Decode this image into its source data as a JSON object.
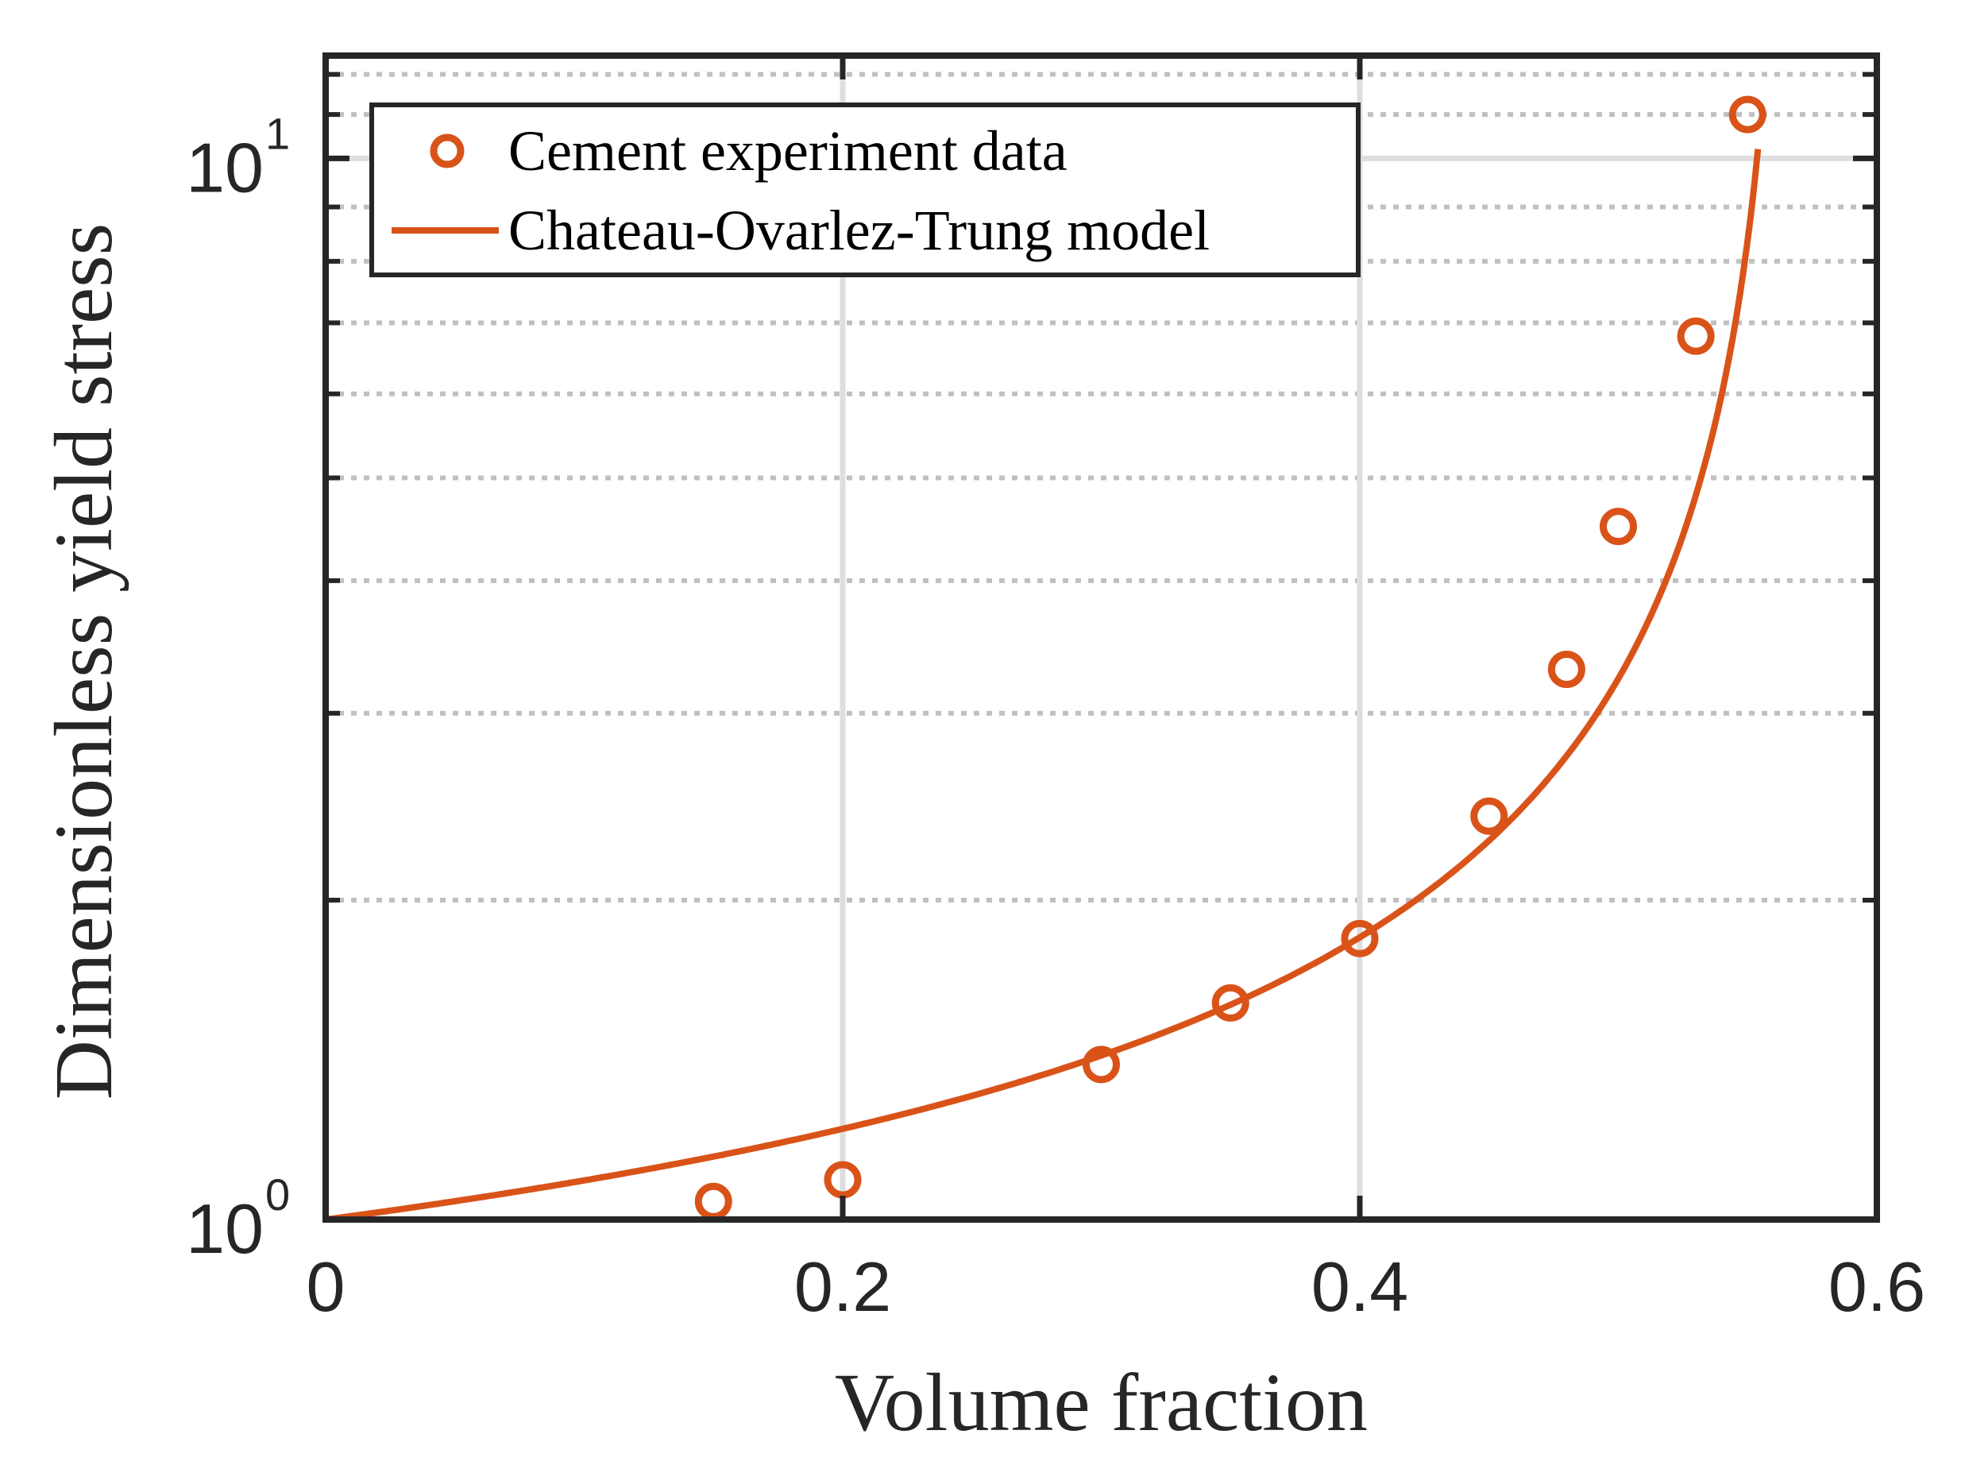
{
  "chart_data": {
    "type": "scatter",
    "title": "",
    "xlabel": "Volume fraction",
    "ylabel": "Dimensionless yield stress",
    "xlim": [
      0,
      0.6
    ],
    "ylim": [
      1,
      12.5
    ],
    "yscale": "log",
    "x_ticks": [
      0,
      0.2,
      0.4,
      0.6
    ],
    "x_tick_labels": [
      "0",
      "0.2",
      "0.4",
      "0.6"
    ],
    "y_ticks": [
      {
        "value": 1,
        "base": "10",
        "exp": "0"
      },
      {
        "value": 10,
        "base": "10",
        "exp": "1"
      }
    ],
    "grid": true,
    "legend_position": "top-left",
    "colors": {
      "series": "#D95319",
      "axis": "#262626",
      "grid_major": "#DEDEDE",
      "grid_minor": "#C0C0C0"
    },
    "series": [
      {
        "name": "Cement experiment data",
        "kind": "markers",
        "marker": "circle-open",
        "x": [
          0.15,
          0.2,
          0.3,
          0.35,
          0.4,
          0.45,
          0.48,
          0.5,
          0.53,
          0.55
        ],
        "y": [
          1.04,
          1.09,
          1.4,
          1.6,
          1.84,
          2.4,
          3.3,
          4.5,
          6.8,
          11.0
        ]
      },
      {
        "name": "Chateau-Ovarlez-Trung model",
        "kind": "line",
        "model": "sqrt((1-x)/(1-x/phi_m)^(2.5*phi_m))",
        "phi_m": 0.566,
        "x_range": [
          0,
          0.554
        ]
      }
    ]
  }
}
